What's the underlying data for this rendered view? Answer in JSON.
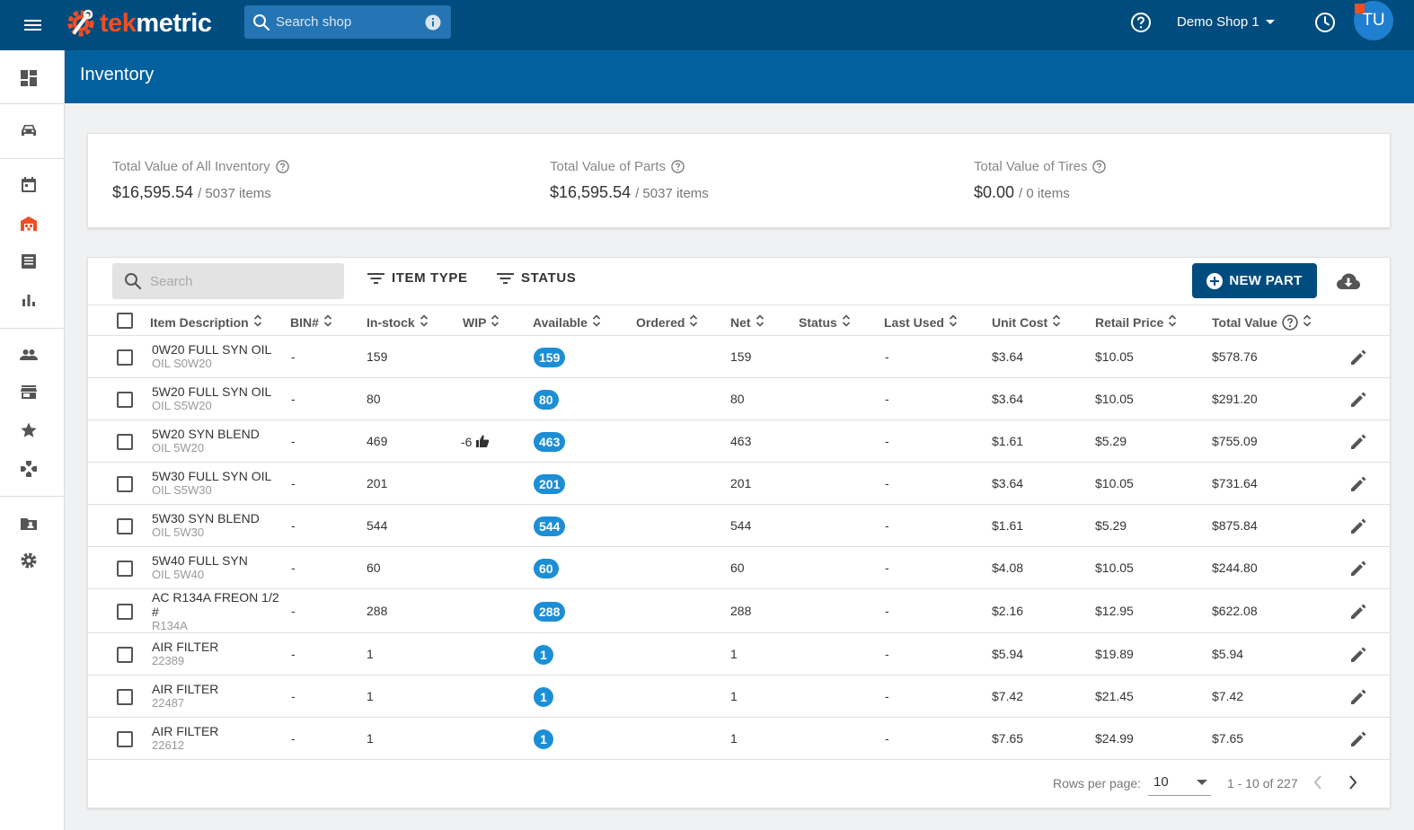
{
  "app": {
    "logo_prefix": "tek",
    "logo_suffix": "metric",
    "search_placeholder": "Search shop",
    "shop_name": "Demo Shop 1",
    "user_initials": "TU"
  },
  "page": {
    "title": "Inventory"
  },
  "summary": [
    {
      "label": "Total Value of All Inventory",
      "value": "$16,595.54",
      "items": "/ 5037 items"
    },
    {
      "label": "Total Value of Parts",
      "value": "$16,595.54",
      "items": "/ 5037 items"
    },
    {
      "label": "Total Value of Tires",
      "value": "$0.00",
      "items": "/ 0 items"
    }
  ],
  "toolbar": {
    "search_placeholder": "Search",
    "item_type_label": "ITEM TYPE",
    "status_label": "STATUS",
    "new_part_label": "NEW PART"
  },
  "columns": {
    "description": "Item Description",
    "bin": "BIN#",
    "instock": "In-stock",
    "wip": "WIP",
    "available": "Available",
    "ordered": "Ordered",
    "net": "Net",
    "status": "Status",
    "last_used": "Last Used",
    "unit_cost": "Unit Cost",
    "retail_price": "Retail Price",
    "total_value": "Total Value"
  },
  "rows": [
    {
      "name": "0W20 FULL SYN OIL",
      "code": "OIL S0W20",
      "bin": "-",
      "instock": "159",
      "wip": "",
      "available": "159",
      "net": "159",
      "last_used": "-",
      "unit_cost": "$3.64",
      "retail": "$10.05",
      "total": "$578.76"
    },
    {
      "name": "5W20 FULL SYN OIL",
      "code": "OIL S5W20",
      "bin": "-",
      "instock": "80",
      "wip": "",
      "available": "80",
      "net": "80",
      "last_used": "-",
      "unit_cost": "$3.64",
      "retail": "$10.05",
      "total": "$291.20"
    },
    {
      "name": "5W20 SYN BLEND",
      "code": "OIL 5W20",
      "bin": "-",
      "instock": "469",
      "wip": "-6",
      "available": "463",
      "net": "463",
      "last_used": "-",
      "unit_cost": "$1.61",
      "retail": "$5.29",
      "total": "$755.09"
    },
    {
      "name": "5W30 FULL SYN OIL",
      "code": "OIL S5W30",
      "bin": "-",
      "instock": "201",
      "wip": "",
      "available": "201",
      "net": "201",
      "last_used": "-",
      "unit_cost": "$3.64",
      "retail": "$10.05",
      "total": "$731.64"
    },
    {
      "name": "5W30 SYN BLEND",
      "code": "OIL 5W30",
      "bin": "-",
      "instock": "544",
      "wip": "",
      "available": "544",
      "net": "544",
      "last_used": "-",
      "unit_cost": "$1.61",
      "retail": "$5.29",
      "total": "$875.84"
    },
    {
      "name": "5W40 FULL SYN",
      "code": "OIL 5W40",
      "bin": "-",
      "instock": "60",
      "wip": "",
      "available": "60",
      "net": "60",
      "last_used": "-",
      "unit_cost": "$4.08",
      "retail": "$10.05",
      "total": "$244.80"
    },
    {
      "name": "AC R134A FREON 1/2 #",
      "code": "R134A",
      "bin": "-",
      "instock": "288",
      "wip": "",
      "available": "288",
      "net": "288",
      "last_used": "-",
      "unit_cost": "$2.16",
      "retail": "$12.95",
      "total": "$622.08"
    },
    {
      "name": "AIR FILTER",
      "code": "22389",
      "bin": "-",
      "instock": "1",
      "wip": "",
      "available": "1",
      "net": "1",
      "last_used": "-",
      "unit_cost": "$5.94",
      "retail": "$19.89",
      "total": "$5.94"
    },
    {
      "name": "AIR FILTER",
      "code": "22487",
      "bin": "-",
      "instock": "1",
      "wip": "",
      "available": "1",
      "net": "1",
      "last_used": "-",
      "unit_cost": "$7.42",
      "retail": "$21.45",
      "total": "$7.42"
    },
    {
      "name": "AIR FILTER",
      "code": "22612",
      "bin": "-",
      "instock": "1",
      "wip": "",
      "available": "1",
      "net": "1",
      "last_used": "-",
      "unit_cost": "$7.65",
      "retail": "$24.99",
      "total": "$7.65"
    }
  ],
  "pagination": {
    "rows_per_page_label": "Rows per page:",
    "rows_per_page": "10",
    "range": "1 - 10 of 227"
  },
  "colors": {
    "topbar": "#014c7e",
    "page_header": "#02609e",
    "accent_orange": "#f04e23",
    "badge_blue": "#1c8ed6"
  }
}
